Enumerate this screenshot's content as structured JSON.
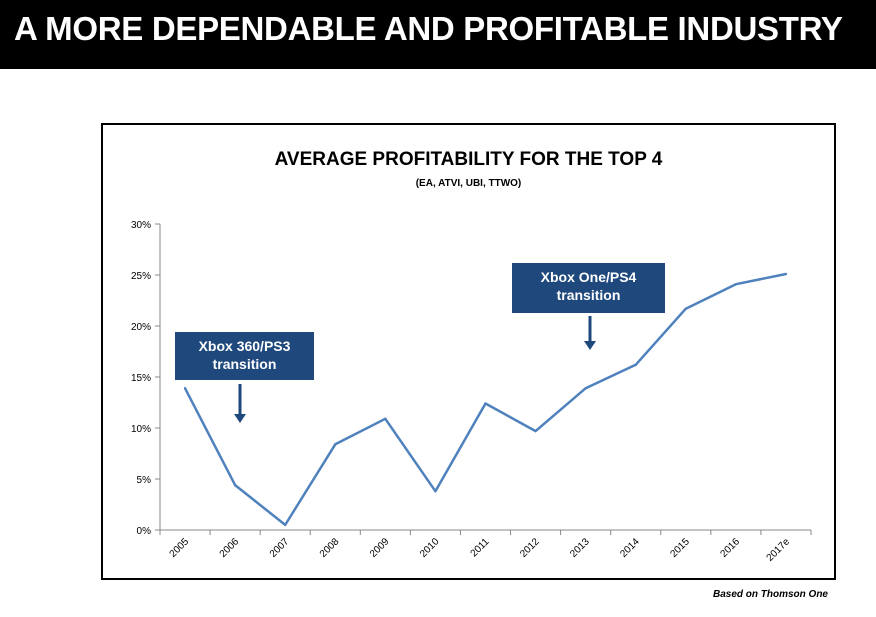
{
  "slide": {
    "title": "A MORE DEPENDABLE AND PROFITABLE INDUSTRY",
    "source_note": "Based on Thomson One"
  },
  "chart_data": {
    "type": "line",
    "title": "AVERAGE PROFITABILITY FOR THE TOP 4",
    "subtitle": "(EA, ATVI, UBI, TTWO)",
    "xlabel": "",
    "ylabel": "",
    "categories": [
      "2005",
      "2006",
      "2007",
      "2008",
      "2009",
      "2010",
      "2011",
      "2012",
      "2013",
      "2014",
      "2015",
      "2016",
      "2017e"
    ],
    "series": [
      {
        "values": [
          13.9,
          4.4,
          0.5,
          8.4,
          10.9,
          3.8,
          12.4,
          9.7,
          13.9,
          16.2,
          21.7,
          24.1,
          25.1
        ]
      }
    ],
    "ylim": [
      0,
      30
    ],
    "yticks": [
      0,
      5,
      10,
      15,
      20,
      25,
      30
    ],
    "ytick_labels": [
      "0%",
      "5%",
      "10%",
      "15%",
      "20%",
      "25%",
      "30%"
    ],
    "grid": false,
    "line_color": "#4f81bd",
    "annotations": [
      {
        "lines": [
          "Xbox 360/PS3",
          "transition"
        ],
        "color": "#1f497d"
      },
      {
        "lines": [
          "Xbox One/PS4",
          "transition"
        ],
        "color": "#1f497d"
      }
    ]
  }
}
